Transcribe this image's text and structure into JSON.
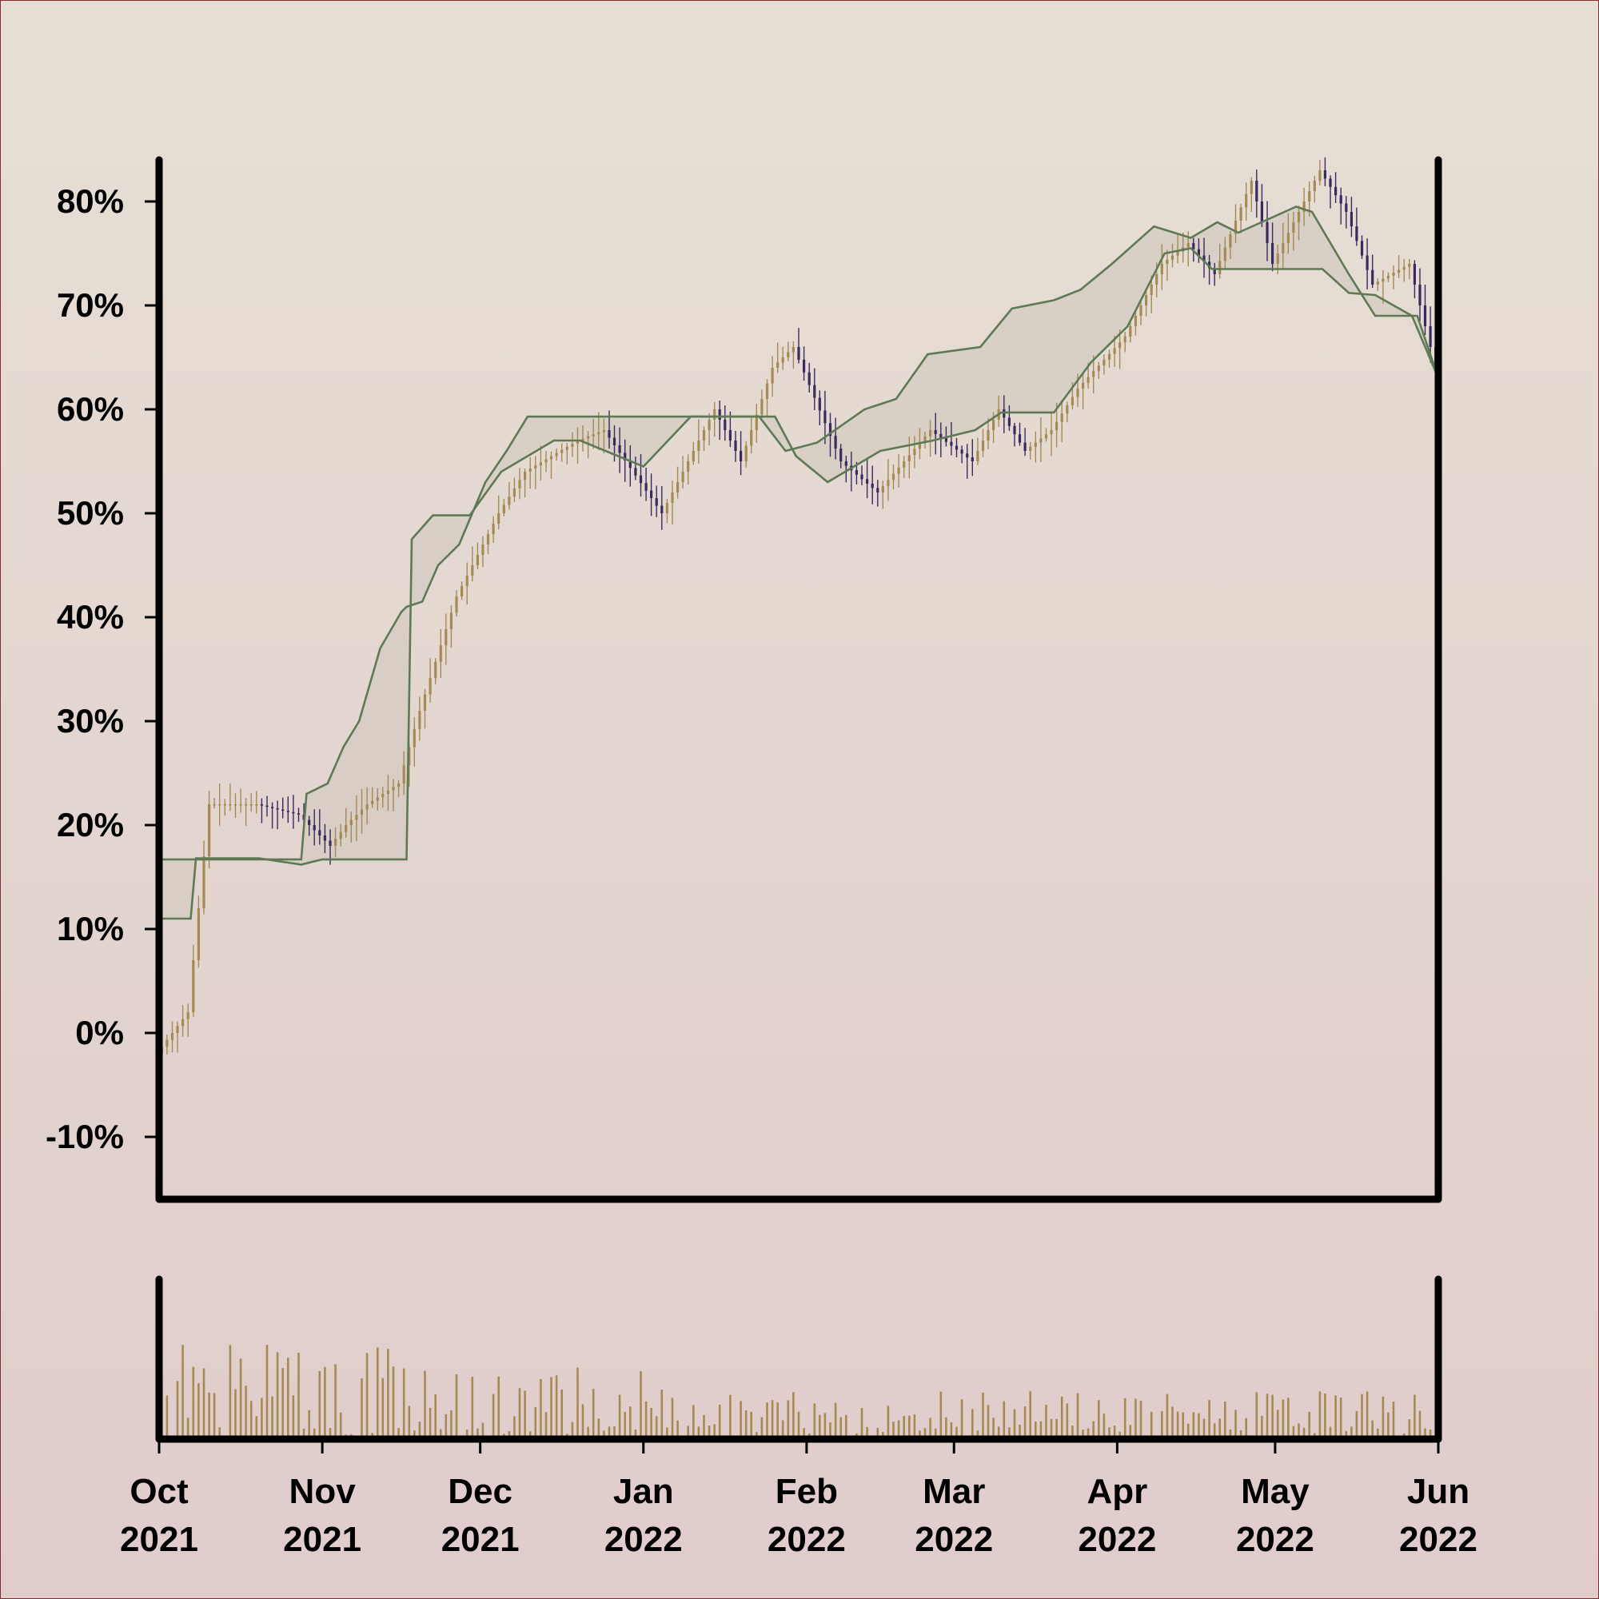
{
  "chart_data": {
    "type": "candlestick",
    "title": "",
    "xlabel": "",
    "ylabel": "",
    "y_format": "percent",
    "ylim": [
      -16,
      84
    ],
    "yticks": [
      -10,
      0,
      10,
      20,
      30,
      40,
      50,
      60,
      70,
      80
    ],
    "ytick_labels": [
      "-10%",
      "0%",
      "10%",
      "20%",
      "30%",
      "40%",
      "50%",
      "60%",
      "70%",
      "80%"
    ],
    "xlim": [
      "2021-10-01",
      "2022-06-01"
    ],
    "xticks": [
      {
        "date": "2021-10-01",
        "month": "Oct",
        "year": "2021"
      },
      {
        "date": "2021-11-01",
        "month": "Nov",
        "year": "2021"
      },
      {
        "date": "2021-12-01",
        "month": "Dec",
        "year": "2021"
      },
      {
        "date": "2022-01-01",
        "month": "Jan",
        "year": "2022"
      },
      {
        "date": "2022-02-01",
        "month": "Feb",
        "year": "2022"
      },
      {
        "date": "2022-03-01",
        "month": "Mar",
        "year": "2022"
      },
      {
        "date": "2022-04-01",
        "month": "Apr",
        "year": "2022"
      },
      {
        "date": "2022-05-01",
        "month": "May",
        "year": "2022"
      },
      {
        "date": "2022-06-01",
        "month": "Jun",
        "year": "2022"
      }
    ],
    "colors": {
      "up": "#a68a55",
      "down": "#3b2a5e",
      "band": "#5e7a55",
      "band_fill": "#d6cdc3",
      "volume": "#a68a55"
    },
    "grid": false,
    "legend": "none",
    "price_keypoints": [
      [
        "2021-10-01",
        -2
      ],
      [
        "2021-10-04",
        0
      ],
      [
        "2021-10-07",
        2
      ],
      [
        "2021-10-11",
        22
      ],
      [
        "2021-10-20",
        22
      ],
      [
        "2021-10-28",
        21
      ],
      [
        "2021-11-03",
        18
      ],
      [
        "2021-11-06",
        20
      ],
      [
        "2021-11-10",
        22
      ],
      [
        "2021-11-16",
        24
      ],
      [
        "2021-11-20",
        31
      ],
      [
        "2021-11-27",
        42
      ],
      [
        "2021-12-05",
        50
      ],
      [
        "2021-12-10",
        54
      ],
      [
        "2021-12-20",
        57
      ],
      [
        "2021-12-25",
        58
      ],
      [
        "2022-01-05",
        50
      ],
      [
        "2022-01-15",
        60
      ],
      [
        "2022-01-20",
        55
      ],
      [
        "2022-01-26",
        64
      ],
      [
        "2022-01-30",
        66
      ],
      [
        "2022-02-08",
        55
      ],
      [
        "2022-02-15",
        52
      ],
      [
        "2022-02-25",
        58
      ],
      [
        "2022-03-05",
        55
      ],
      [
        "2022-03-10",
        60
      ],
      [
        "2022-03-15",
        56
      ],
      [
        "2022-03-20",
        58
      ],
      [
        "2022-03-25",
        62
      ],
      [
        "2022-04-03",
        67
      ],
      [
        "2022-04-10",
        74
      ],
      [
        "2022-04-15",
        76
      ],
      [
        "2022-04-20",
        73
      ],
      [
        "2022-04-27",
        82
      ],
      [
        "2022-05-01",
        74
      ],
      [
        "2022-05-10",
        83
      ],
      [
        "2022-05-15",
        79
      ],
      [
        "2022-05-20",
        72
      ],
      [
        "2022-05-27",
        74
      ],
      [
        "2022-06-01",
        64
      ]
    ],
    "upper_band": [
      [
        "2021-10-01",
        16.7
      ],
      [
        "2021-10-28",
        16.7
      ],
      [
        "2021-10-29",
        23
      ],
      [
        "2021-11-02",
        24
      ],
      [
        "2021-11-05",
        27.5
      ],
      [
        "2021-11-08",
        30
      ],
      [
        "2021-11-12",
        37
      ],
      [
        "2021-11-16",
        40.5
      ],
      [
        "2021-11-17",
        41
      ],
      [
        "2021-11-20",
        41.5
      ],
      [
        "2021-11-23",
        45
      ],
      [
        "2021-11-27",
        47
      ],
      [
        "2021-12-02",
        53
      ],
      [
        "2021-12-06",
        56
      ],
      [
        "2021-12-10",
        59.3
      ],
      [
        "2022-01-23",
        59.3
      ],
      [
        "2022-01-28",
        56
      ],
      [
        "2022-02-03",
        56.8
      ],
      [
        "2022-02-12",
        60
      ],
      [
        "2022-02-18",
        61
      ],
      [
        "2022-02-24",
        65.3
      ],
      [
        "2022-03-06",
        66
      ],
      [
        "2022-03-12",
        69.7
      ],
      [
        "2022-03-20",
        70.5
      ],
      [
        "2022-03-25",
        71.5
      ],
      [
        "2022-03-31",
        74
      ],
      [
        "2022-04-08",
        77.6
      ],
      [
        "2022-04-15",
        76.5
      ],
      [
        "2022-04-20",
        78
      ],
      [
        "2022-04-24",
        77
      ],
      [
        "2022-05-05",
        79.5
      ],
      [
        "2022-05-08",
        79
      ],
      [
        "2022-05-15",
        73
      ],
      [
        "2022-05-20",
        69
      ],
      [
        "2022-05-28",
        69
      ],
      [
        "2022-06-01",
        63
      ]
    ],
    "lower_band": [
      [
        "2021-10-01",
        11
      ],
      [
        "2021-10-07",
        11
      ],
      [
        "2021-10-08",
        16.8
      ],
      [
        "2021-10-20",
        16.8
      ],
      [
        "2021-10-28",
        16.2
      ],
      [
        "2021-11-01",
        16.7
      ],
      [
        "2021-11-17",
        16.7
      ],
      [
        "2021-11-18",
        47.5
      ],
      [
        "2021-11-22",
        49.8
      ],
      [
        "2021-11-29",
        49.8
      ],
      [
        "2021-12-05",
        54
      ],
      [
        "2021-12-15",
        57
      ],
      [
        "2021-12-20",
        57
      ],
      [
        "2022-01-01",
        54.5
      ],
      [
        "2022-01-10",
        59.3
      ],
      [
        "2022-01-26",
        59.3
      ],
      [
        "2022-01-30",
        55.5
      ],
      [
        "2022-02-05",
        53
      ],
      [
        "2022-02-15",
        56
      ],
      [
        "2022-02-25",
        57
      ],
      [
        "2022-03-05",
        58
      ],
      [
        "2022-03-10",
        59.7
      ],
      [
        "2022-03-20",
        59.7
      ],
      [
        "2022-03-27",
        64.5
      ],
      [
        "2022-04-03",
        68
      ],
      [
        "2022-04-10",
        75
      ],
      [
        "2022-04-15",
        75.5
      ],
      [
        "2022-04-19",
        73.5
      ],
      [
        "2022-05-10",
        73.5
      ],
      [
        "2022-05-15",
        71.2
      ],
      [
        "2022-05-20",
        71
      ],
      [
        "2022-05-27",
        69
      ],
      [
        "2022-06-01",
        63
      ],
      [
        "2022-06-01",
        17
      ]
    ]
  }
}
